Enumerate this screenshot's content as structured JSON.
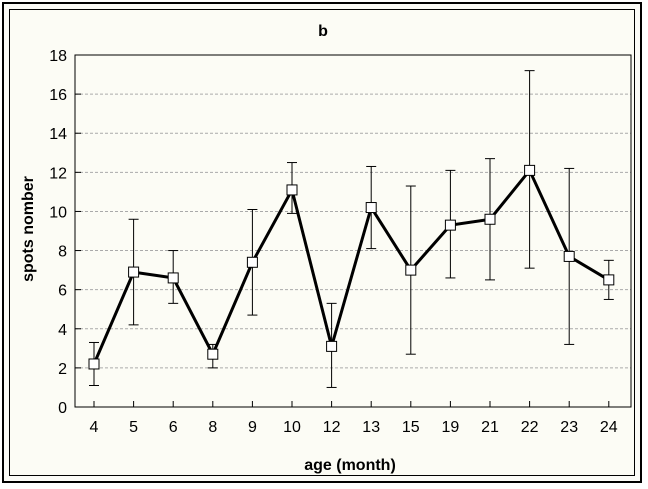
{
  "chart_data": {
    "type": "line",
    "title": "b",
    "xlabel": "age (month)",
    "ylabel": "spots nomber",
    "categories": [
      "4",
      "5",
      "6",
      "8",
      "9",
      "10",
      "12",
      "13",
      "15",
      "19",
      "21",
      "22",
      "23",
      "24"
    ],
    "series": [
      {
        "values": [
          2.2,
          6.9,
          6.6,
          2.7,
          7.4,
          11.1,
          3.1,
          10.2,
          7.0,
          9.3,
          9.6,
          12.1,
          7.7,
          6.5
        ],
        "error_upper": [
          3.3,
          9.6,
          8.0,
          3.2,
          10.1,
          12.5,
          5.3,
          12.3,
          11.3,
          12.1,
          12.7,
          17.2,
          12.2,
          7.5
        ],
        "error_lower": [
          1.1,
          4.2,
          5.3,
          2.0,
          4.7,
          9.9,
          1.0,
          8.1,
          2.7,
          6.6,
          6.5,
          7.1,
          3.2,
          5.5
        ]
      }
    ],
    "ylim": [
      0,
      18
    ],
    "yticks": [
      "0",
      "2",
      "4",
      "6",
      "8",
      "10",
      "12",
      "14",
      "16",
      "18"
    ],
    "grid": "horizontal dashed",
    "marker": "square",
    "line_color": "#000000"
  }
}
